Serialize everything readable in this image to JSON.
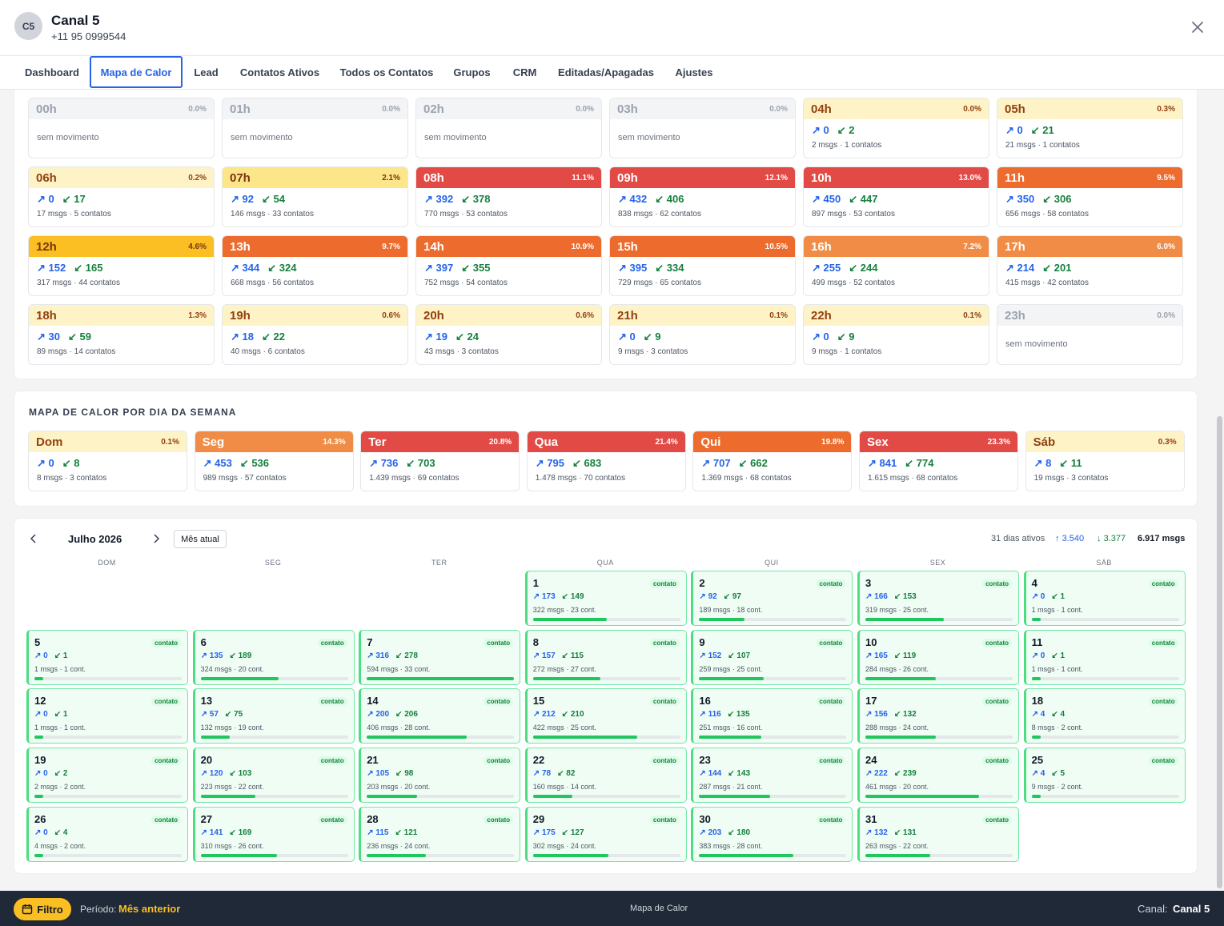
{
  "header": {
    "avatar": "C5",
    "title": "Canal 5",
    "phone": "+11 95 0999544"
  },
  "tabs": [
    "Dashboard",
    "Mapa de Calor",
    "Lead",
    "Contatos Ativos",
    "Todos os Contatos",
    "Grupos",
    "CRM",
    "Editadas/Apagadas",
    "Ajustes"
  ],
  "active_tab": "Mapa de Calor",
  "hours": [
    {
      "label": "00h",
      "pct": "0.0%",
      "out": null,
      "in": null,
      "stats": "sem movimento",
      "tone": "zero"
    },
    {
      "label": "01h",
      "pct": "0.0%",
      "out": null,
      "in": null,
      "stats": "sem movimento",
      "tone": "zero"
    },
    {
      "label": "02h",
      "pct": "0.0%",
      "out": null,
      "in": null,
      "stats": "sem movimento",
      "tone": "zero"
    },
    {
      "label": "03h",
      "pct": "0.0%",
      "out": null,
      "in": null,
      "stats": "sem movimento",
      "tone": "zero"
    },
    {
      "label": "04h",
      "pct": "0.0%",
      "out": "0",
      "in": "2",
      "stats": "2 msgs · 1 contatos",
      "tone": "pale"
    },
    {
      "label": "05h",
      "pct": "0.3%",
      "out": "0",
      "in": "21",
      "stats": "21 msgs · 1 contatos",
      "tone": "pale"
    },
    {
      "label": "06h",
      "pct": "0.2%",
      "out": "0",
      "in": "17",
      "stats": "17 msgs · 5 contatos",
      "tone": "pale"
    },
    {
      "label": "07h",
      "pct": "2.1%",
      "out": "92",
      "in": "54",
      "stats": "146 msgs · 33 contatos",
      "tone": "light"
    },
    {
      "label": "08h",
      "pct": "11.1%",
      "out": "392",
      "in": "378",
      "stats": "770 msgs · 53 contatos",
      "tone": "red"
    },
    {
      "label": "09h",
      "pct": "12.1%",
      "out": "432",
      "in": "406",
      "stats": "838 msgs · 62 contatos",
      "tone": "red"
    },
    {
      "label": "10h",
      "pct": "13.0%",
      "out": "450",
      "in": "447",
      "stats": "897 msgs · 53 contatos",
      "tone": "red"
    },
    {
      "label": "11h",
      "pct": "9.5%",
      "out": "350",
      "in": "306",
      "stats": "656 msgs · 58 contatos",
      "tone": "dorg"
    },
    {
      "label": "12h",
      "pct": "4.6%",
      "out": "152",
      "in": "165",
      "stats": "317 msgs · 44 contatos",
      "tone": "mid"
    },
    {
      "label": "13h",
      "pct": "9.7%",
      "out": "344",
      "in": "324",
      "stats": "668 msgs · 56 contatos",
      "tone": "dorg"
    },
    {
      "label": "14h",
      "pct": "10.9%",
      "out": "397",
      "in": "355",
      "stats": "752 msgs · 54 contatos",
      "tone": "dorg"
    },
    {
      "label": "15h",
      "pct": "10.5%",
      "out": "395",
      "in": "334",
      "stats": "729 msgs · 65 contatos",
      "tone": "dorg"
    },
    {
      "label": "16h",
      "pct": "7.2%",
      "out": "255",
      "in": "244",
      "stats": "499 msgs · 52 contatos",
      "tone": "org"
    },
    {
      "label": "17h",
      "pct": "6.0%",
      "out": "214",
      "in": "201",
      "stats": "415 msgs · 42 contatos",
      "tone": "org"
    },
    {
      "label": "18h",
      "pct": "1.3%",
      "out": "30",
      "in": "59",
      "stats": "89 msgs · 14 contatos",
      "tone": "pale"
    },
    {
      "label": "19h",
      "pct": "0.6%",
      "out": "18",
      "in": "22",
      "stats": "40 msgs · 6 contatos",
      "tone": "pale"
    },
    {
      "label": "20h",
      "pct": "0.6%",
      "out": "19",
      "in": "24",
      "stats": "43 msgs · 3 contatos",
      "tone": "pale"
    },
    {
      "label": "21h",
      "pct": "0.1%",
      "out": "0",
      "in": "9",
      "stats": "9 msgs · 3 contatos",
      "tone": "pale"
    },
    {
      "label": "22h",
      "pct": "0.1%",
      "out": "0",
      "in": "9",
      "stats": "9 msgs · 1 contatos",
      "tone": "pale"
    },
    {
      "label": "23h",
      "pct": "0.0%",
      "out": null,
      "in": null,
      "stats": "sem movimento",
      "tone": "zero"
    }
  ],
  "weekday_title": "MAPA DE CALOR POR DIA DA SEMANA",
  "weekdays": [
    {
      "label": "Dom",
      "pct": "0.1%",
      "out": "0",
      "in": "8",
      "stats": "8 msgs · 3 contatos",
      "tone": "pale"
    },
    {
      "label": "Seg",
      "pct": "14.3%",
      "out": "453",
      "in": "536",
      "stats": "989 msgs · 57 contatos",
      "tone": "org"
    },
    {
      "label": "Ter",
      "pct": "20.8%",
      "out": "736",
      "in": "703",
      "stats": "1.439 msgs · 69 contatos",
      "tone": "red"
    },
    {
      "label": "Qua",
      "pct": "21.4%",
      "out": "795",
      "in": "683",
      "stats": "1.478 msgs · 70 contatos",
      "tone": "red"
    },
    {
      "label": "Qui",
      "pct": "19.8%",
      "out": "707",
      "in": "662",
      "stats": "1.369 msgs · 68 contatos",
      "tone": "dorg"
    },
    {
      "label": "Sex",
      "pct": "23.3%",
      "out": "841",
      "in": "774",
      "stats": "1.615 msgs · 68 contatos",
      "tone": "red"
    },
    {
      "label": "Sáb",
      "pct": "0.3%",
      "out": "8",
      "in": "11",
      "stats": "19 msgs · 3 contatos",
      "tone": "pale"
    }
  ],
  "calendar": {
    "prev_icon": "chevron-left-icon",
    "next_icon": "chevron-right-icon",
    "month": "Julho 2026",
    "current_button": "Mês atual",
    "active_days": "31 dias ativos",
    "total_out": "3.540",
    "total_in": "3.377",
    "total_msgs": "6.917 msgs",
    "weekday_headers": [
      "DOM",
      "SEG",
      "TER",
      "QUA",
      "QUI",
      "SEX",
      "SÁB"
    ],
    "first_weekday_index": 3,
    "badge": "contato",
    "days": [
      {
        "d": "1",
        "out": "173",
        "in": "149",
        "stats": "322 msgs · 23 cont.",
        "fill": 0.5
      },
      {
        "d": "2",
        "out": "92",
        "in": "97",
        "stats": "189 msgs · 18 cont.",
        "fill": 0.31
      },
      {
        "d": "3",
        "out": "166",
        "in": "153",
        "stats": "319 msgs · 25 cont.",
        "fill": 0.53
      },
      {
        "d": "4",
        "out": "0",
        "in": "1",
        "stats": "1 msgs · 1 cont.",
        "fill": 0.06
      },
      {
        "d": "5",
        "out": "0",
        "in": "1",
        "stats": "1 msgs · 1 cont.",
        "fill": 0.06
      },
      {
        "d": "6",
        "out": "135",
        "in": "189",
        "stats": "324 msgs · 20 cont.",
        "fill": 0.53
      },
      {
        "d": "7",
        "out": "316",
        "in": "278",
        "stats": "594 msgs · 33 cont.",
        "fill": 1.0
      },
      {
        "d": "8",
        "out": "157",
        "in": "115",
        "stats": "272 msgs · 27 cont.",
        "fill": 0.46
      },
      {
        "d": "9",
        "out": "152",
        "in": "107",
        "stats": "259 msgs · 25 cont.",
        "fill": 0.44
      },
      {
        "d": "10",
        "out": "165",
        "in": "119",
        "stats": "284 msgs · 26 cont.",
        "fill": 0.48
      },
      {
        "d": "11",
        "out": "0",
        "in": "1",
        "stats": "1 msgs · 1 cont.",
        "fill": 0.06
      },
      {
        "d": "12",
        "out": "0",
        "in": "1",
        "stats": "1 msgs · 1 cont.",
        "fill": 0.06
      },
      {
        "d": "13",
        "out": "57",
        "in": "75",
        "stats": "132 msgs · 19 cont.",
        "fill": 0.2
      },
      {
        "d": "14",
        "out": "200",
        "in": "206",
        "stats": "406 msgs · 28 cont.",
        "fill": 0.68
      },
      {
        "d": "15",
        "out": "212",
        "in": "210",
        "stats": "422 msgs · 25 cont.",
        "fill": 0.71
      },
      {
        "d": "16",
        "out": "116",
        "in": "135",
        "stats": "251 msgs · 16 cont.",
        "fill": 0.42
      },
      {
        "d": "17",
        "out": "156",
        "in": "132",
        "stats": "288 msgs · 24 cont.",
        "fill": 0.48
      },
      {
        "d": "18",
        "out": "4",
        "in": "4",
        "stats": "8 msgs · 2 cont.",
        "fill": 0.06
      },
      {
        "d": "19",
        "out": "0",
        "in": "2",
        "stats": "2 msgs · 2 cont.",
        "fill": 0.06
      },
      {
        "d": "20",
        "out": "120",
        "in": "103",
        "stats": "223 msgs · 22 cont.",
        "fill": 0.37
      },
      {
        "d": "21",
        "out": "105",
        "in": "98",
        "stats": "203 msgs · 20 cont.",
        "fill": 0.34
      },
      {
        "d": "22",
        "out": "78",
        "in": "82",
        "stats": "160 msgs · 14 cont.",
        "fill": 0.27
      },
      {
        "d": "23",
        "out": "144",
        "in": "143",
        "stats": "287 msgs · 21 cont.",
        "fill": 0.48
      },
      {
        "d": "24",
        "out": "222",
        "in": "239",
        "stats": "461 msgs · 20 cont.",
        "fill": 0.77
      },
      {
        "d": "25",
        "out": "4",
        "in": "5",
        "stats": "9 msgs · 2 cont.",
        "fill": 0.06
      },
      {
        "d": "26",
        "out": "0",
        "in": "4",
        "stats": "4 msgs · 2 cont.",
        "fill": 0.06
      },
      {
        "d": "27",
        "out": "141",
        "in": "169",
        "stats": "310 msgs · 26 cont.",
        "fill": 0.52
      },
      {
        "d": "28",
        "out": "115",
        "in": "121",
        "stats": "236 msgs · 24 cont.",
        "fill": 0.4
      },
      {
        "d": "29",
        "out": "175",
        "in": "127",
        "stats": "302 msgs · 24 cont.",
        "fill": 0.51
      },
      {
        "d": "30",
        "out": "203",
        "in": "180",
        "stats": "383 msgs · 28 cont.",
        "fill": 0.64
      },
      {
        "d": "31",
        "out": "132",
        "in": "131",
        "stats": "263 msgs · 22 cont.",
        "fill": 0.44
      }
    ]
  },
  "footer": {
    "filter_button": "Filtro",
    "period_label": "Período:",
    "period_value": "Mês anterior",
    "center": "Mapa de Calor",
    "channel_label": "Canal:",
    "channel_value": "Canal 5"
  },
  "colors": {
    "accent": "#2563eb",
    "out": "#2563eb",
    "in": "#15803d",
    "filter": "#fbbf24",
    "footer_bg": "#1f2937"
  }
}
